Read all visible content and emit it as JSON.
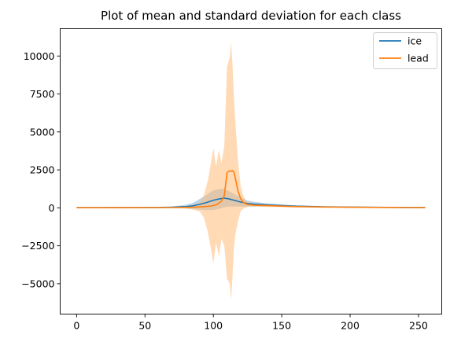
{
  "chart_data": {
    "type": "line",
    "title": "Plot of mean and standard deviation for each class",
    "xlabel": "",
    "ylabel": "",
    "xlim": [
      -12,
      267
    ],
    "ylim": [
      -7000,
      11800
    ],
    "x_ticks": [
      0,
      50,
      100,
      150,
      200,
      250
    ],
    "y_ticks": [
      -5000,
      -2500,
      0,
      2500,
      5000,
      7500,
      10000
    ],
    "x_tick_labels": [
      "0",
      "50",
      "100",
      "150",
      "200",
      "250"
    ],
    "y_tick_labels": [
      "−5000",
      "−2500",
      "0",
      "2500",
      "5000",
      "7500",
      "10000"
    ],
    "grid": false,
    "legend_position": "top-right",
    "series": [
      {
        "name": "ice",
        "color": "#1f77b4",
        "band_color": "#1f77b4",
        "points": [
          [
            0,
            10,
            10
          ],
          [
            20,
            15,
            15
          ],
          [
            40,
            20,
            20
          ],
          [
            60,
            25,
            30
          ],
          [
            70,
            40,
            50
          ],
          [
            80,
            80,
            120
          ],
          [
            85,
            130,
            200
          ],
          [
            90,
            230,
            350
          ],
          [
            95,
            350,
            500
          ],
          [
            100,
            500,
            650
          ],
          [
            105,
            600,
            650
          ],
          [
            108,
            640,
            600
          ],
          [
            111,
            600,
            520
          ],
          [
            115,
            500,
            420
          ],
          [
            120,
            380,
            300
          ],
          [
            125,
            280,
            200
          ],
          [
            130,
            240,
            150
          ],
          [
            140,
            190,
            100
          ],
          [
            150,
            150,
            70
          ],
          [
            160,
            110,
            50
          ],
          [
            180,
            70,
            30
          ],
          [
            200,
            50,
            20
          ],
          [
            220,
            35,
            15
          ],
          [
            240,
            25,
            10
          ],
          [
            255,
            20,
            10
          ]
        ]
      },
      {
        "name": "lead",
        "color": "#ff7f0e",
        "band_color": "#ffbb78",
        "points": [
          [
            0,
            5,
            5
          ],
          [
            40,
            10,
            10
          ],
          [
            70,
            20,
            30
          ],
          [
            80,
            30,
            80
          ],
          [
            85,
            40,
            150
          ],
          [
            90,
            60,
            300
          ],
          [
            93,
            80,
            700
          ],
          [
            96,
            100,
            1700
          ],
          [
            98,
            120,
            2700
          ],
          [
            100,
            150,
            3800
          ],
          [
            102,
            200,
            2500
          ],
          [
            104,
            300,
            3500
          ],
          [
            106,
            450,
            2500
          ],
          [
            108,
            800,
            3300
          ],
          [
            110,
            2300,
            7000
          ],
          [
            111,
            2400,
            7200
          ],
          [
            112,
            2430,
            7500
          ],
          [
            113,
            2400,
            8500
          ],
          [
            114,
            2450,
            7000
          ],
          [
            115,
            2350,
            5000
          ],
          [
            116,
            2000,
            3800
          ],
          [
            118,
            1100,
            2000
          ],
          [
            120,
            600,
            800
          ],
          [
            122,
            350,
            400
          ],
          [
            125,
            220,
            150
          ],
          [
            130,
            180,
            100
          ],
          [
            140,
            140,
            80
          ],
          [
            150,
            110,
            60
          ],
          [
            160,
            80,
            40
          ],
          [
            180,
            55,
            30
          ],
          [
            200,
            40,
            20
          ],
          [
            220,
            30,
            15
          ],
          [
            240,
            20,
            10
          ],
          [
            255,
            15,
            10
          ]
        ]
      }
    ]
  }
}
